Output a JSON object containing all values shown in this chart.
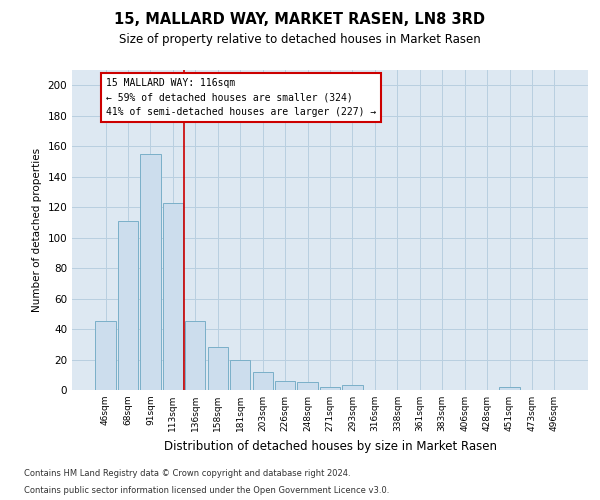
{
  "title": "15, MALLARD WAY, MARKET RASEN, LN8 3RD",
  "subtitle": "Size of property relative to detached houses in Market Rasen",
  "xlabel": "Distribution of detached houses by size in Market Rasen",
  "ylabel": "Number of detached properties",
  "bar_labels": [
    "46sqm",
    "68sqm",
    "91sqm",
    "113sqm",
    "136sqm",
    "158sqm",
    "181sqm",
    "203sqm",
    "226sqm",
    "248sqm",
    "271sqm",
    "293sqm",
    "316sqm",
    "338sqm",
    "361sqm",
    "383sqm",
    "406sqm",
    "428sqm",
    "451sqm",
    "473sqm",
    "496sqm"
  ],
  "bar_heights": [
    45,
    111,
    155,
    123,
    45,
    28,
    20,
    12,
    6,
    5,
    2,
    3,
    0,
    0,
    0,
    0,
    0,
    0,
    2,
    0,
    0
  ],
  "bar_color": "#ccdded",
  "bar_edge_color": "#7aafc8",
  "grid_color": "#b8cfe0",
  "background_color": "#dde8f2",
  "vline_x": 3.5,
  "vline_color": "#cc0000",
  "annotation_text": "15 MALLARD WAY: 116sqm\n← 59% of detached houses are smaller (324)\n41% of semi-detached houses are larger (227) →",
  "annotation_box_color": "#ffffff",
  "annotation_box_edge": "#cc0000",
  "ylim": [
    0,
    210
  ],
  "yticks": [
    0,
    20,
    40,
    60,
    80,
    100,
    120,
    140,
    160,
    180,
    200
  ],
  "footer1": "Contains HM Land Registry data © Crown copyright and database right 2024.",
  "footer2": "Contains public sector information licensed under the Open Government Licence v3.0."
}
